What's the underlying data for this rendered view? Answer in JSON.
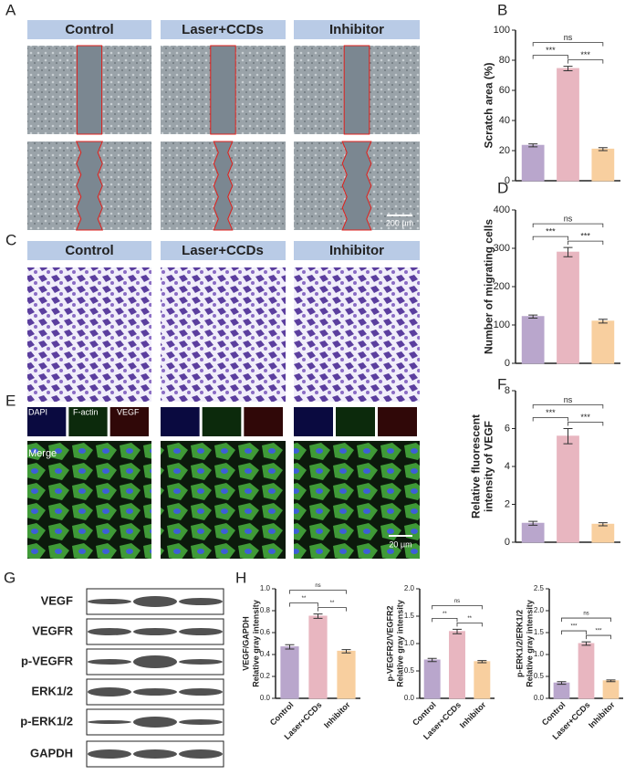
{
  "panels": {
    "letters": [
      "A",
      "B",
      "C",
      "D",
      "E",
      "F",
      "G",
      "H"
    ],
    "scratch_headers": [
      "Control",
      "Laser+CCDs",
      "Inhibitor"
    ],
    "scratch_scale": "200 μm",
    "transwell_headers": [
      "Control",
      "Laser+CCDs",
      "Inhibitor"
    ],
    "stain_labels": [
      "DAPI",
      "F-actin",
      "VEGF"
    ],
    "merge_label": "Merge",
    "stain_scale": "20 μm",
    "blot_labels": [
      "VEGF",
      "VEGFR",
      "p-VEGFR",
      "ERK1/2",
      "p-ERK1/2",
      "GAPDH"
    ]
  },
  "chart_data": [
    {
      "type": "bar",
      "ylabel": [
        "Scratch area (%)"
      ],
      "categories": [
        null,
        null,
        null
      ],
      "values": [
        23.5,
        74.5,
        21
      ],
      "errors": [
        1,
        1.5,
        1
      ],
      "colors": [
        "#b9a6cc",
        "#e8b6c0",
        "#f8cf9f"
      ],
      "ylim": [
        0,
        100
      ],
      "yticks": [
        0,
        20,
        40,
        60,
        80,
        100
      ],
      "annotations": [
        "***",
        "***",
        "ns"
      ]
    },
    {
      "type": "bar",
      "ylabel": [
        "Number of migrating cells"
      ],
      "categories": [
        null,
        null,
        null
      ],
      "values": [
        122,
        290,
        110
      ],
      "errors": [
        4,
        12,
        5
      ],
      "colors": [
        "#b9a6cc",
        "#e8b6c0",
        "#f8cf9f"
      ],
      "ylim": [
        0,
        400
      ],
      "yticks": [
        0,
        100,
        200,
        300,
        400
      ],
      "annotations": [
        "***",
        "***",
        "ns"
      ]
    },
    {
      "type": "bar",
      "ylabel": [
        "Relative fluorescent",
        "intensity of VEGF"
      ],
      "categories": [
        null,
        null,
        null
      ],
      "values": [
        1.0,
        5.6,
        0.95
      ],
      "errors": [
        0.1,
        0.4,
        0.08
      ],
      "colors": [
        "#b9a6cc",
        "#e8b6c0",
        "#f8cf9f"
      ],
      "ylim": [
        0,
        8
      ],
      "yticks": [
        0,
        2,
        4,
        6,
        8
      ],
      "annotations": [
        "***",
        "***",
        "ns"
      ]
    },
    {
      "type": "bar",
      "ylabel": [
        "VEGF/GAPDH",
        "Relative gray intensity"
      ],
      "categories": [
        "Control",
        "Laser+CCDs",
        "Inhibitor"
      ],
      "values": [
        0.47,
        0.75,
        0.43
      ],
      "errors": [
        0.02,
        0.02,
        0.015
      ],
      "colors": [
        "#b9a6cc",
        "#e8b6c0",
        "#f8cf9f"
      ],
      "ylim": [
        0,
        1.0
      ],
      "yticks": [
        {
          "value": 0,
          "label": "0.0"
        },
        0.2,
        0.4,
        0.6,
        0.8,
        {
          "value": 1.0,
          "label": "1.0"
        }
      ],
      "annotations": [
        "**",
        "**",
        "ns"
      ]
    },
    {
      "type": "bar",
      "ylabel": [
        "p-VEGFR2/VEGFR2",
        "Relative gray intensity"
      ],
      "categories": [
        "Control",
        "Laser+CCDs",
        "Inhibitor"
      ],
      "values": [
        0.7,
        1.22,
        0.67
      ],
      "errors": [
        0.03,
        0.04,
        0.02
      ],
      "colors": [
        "#b9a6cc",
        "#e8b6c0",
        "#f8cf9f"
      ],
      "ylim": [
        0,
        2.0
      ],
      "yticks": [
        {
          "value": 0,
          "label": "0.0"
        },
        0.5,
        {
          "value": 1.0,
          "label": "1.0"
        },
        1.5,
        {
          "value": 2.0,
          "label": "2.0"
        }
      ],
      "annotations": [
        "**",
        "**",
        "ns"
      ]
    },
    {
      "type": "bar",
      "ylabel": [
        "p-ERK1/2/ERK1/2",
        "Relative gray intensity"
      ],
      "categories": [
        "Control",
        "Laser+CCDs",
        "Inhibitor"
      ],
      "values": [
        0.35,
        1.25,
        0.4
      ],
      "errors": [
        0.03,
        0.04,
        0.02
      ],
      "colors": [
        "#b9a6cc",
        "#e8b6c0",
        "#f8cf9f"
      ],
      "ylim": [
        0,
        2.5
      ],
      "yticks": [
        {
          "value": 0,
          "label": "0.0"
        },
        0.5,
        {
          "value": 1.0,
          "label": "1.0"
        },
        1.5,
        {
          "value": 2.0,
          "label": "2.0"
        },
        2.5
      ],
      "annotations": [
        "***",
        "***",
        "ns"
      ]
    }
  ]
}
